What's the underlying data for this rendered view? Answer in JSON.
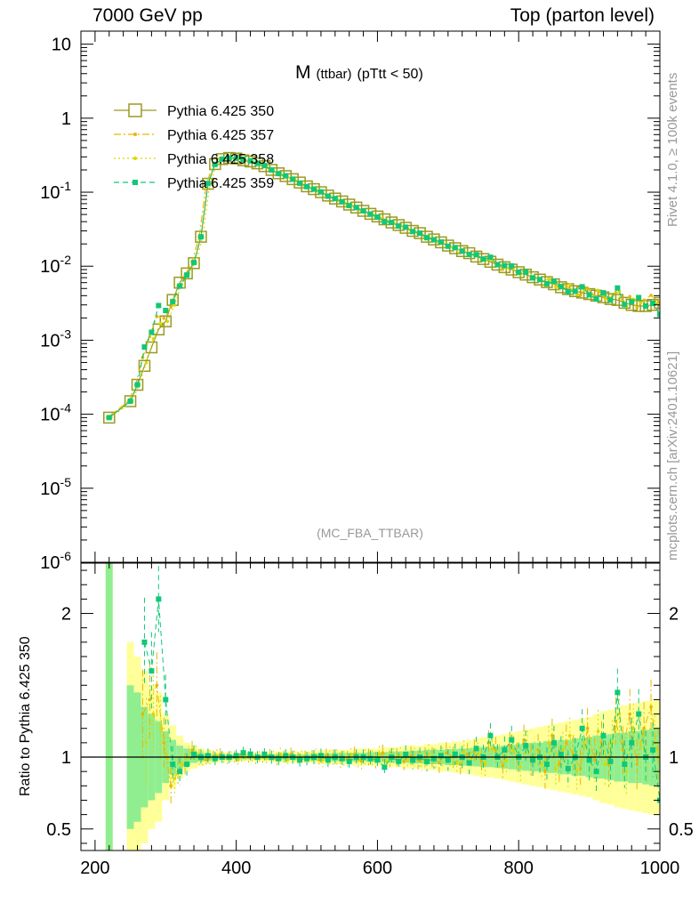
{
  "header": {
    "left": "7000 GeV pp",
    "right": "Top (parton level)"
  },
  "side_labels": {
    "rivet": "Rivet 4.1.0, ≥ 100k events",
    "mcplots": "mcplots.cern.ch [arXiv:2401.10621]"
  },
  "colors": {
    "p350": "#9a9a20",
    "p357": "#e6b800",
    "p358": "#d8d800",
    "p359": "#10c878",
    "band_yellow": "#ffff99",
    "band_green": "#90ee90"
  },
  "chart_data": {
    "type": "line",
    "title": "M (ttbar) (pTtt < 50)",
    "title_main": "M",
    "title_sub": "(ttbar)",
    "title_cut": "(pTtt < 50)",
    "watermark": "(MC_FBA_TTBAR)",
    "xlabel": "",
    "ylabel": "",
    "ratio_ylabel": "Ratio to Pythia 6.425 350",
    "xlim": [
      180,
      1000
    ],
    "ylim": [
      1e-06,
      15
    ],
    "yscale": "log",
    "ratio_ylim": [
      0.35,
      2.35
    ],
    "x_ticks": [
      "200",
      "400",
      "600",
      "800",
      "1000"
    ],
    "y_ticks": [
      "10^-6",
      "10^-5",
      "10^-4",
      "10^-3",
      "10^-2",
      "10^-1",
      "1",
      "10"
    ],
    "ratio_ticks": [
      "0.5",
      "1",
      "2"
    ],
    "legend_position": "top-left",
    "series": [
      {
        "name": "Pythia 6.425 350",
        "marker": "open-square",
        "line": "solid"
      },
      {
        "name": "Pythia 6.425 357",
        "marker": "dot",
        "line": "dash-dot"
      },
      {
        "name": "Pythia 6.425 358",
        "marker": "dot",
        "line": "dotted"
      },
      {
        "name": "Pythia 6.425 359",
        "marker": "filled-square",
        "line": "dashed"
      }
    ],
    "x": [
      200,
      210,
      220,
      230,
      240,
      250,
      260,
      270,
      280,
      290,
      300,
      310,
      320,
      330,
      340,
      350,
      360,
      370,
      380,
      390,
      400,
      410,
      420,
      430,
      440,
      450,
      460,
      470,
      480,
      490,
      500,
      510,
      520,
      530,
      540,
      550,
      560,
      570,
      580,
      590,
      600,
      610,
      620,
      630,
      640,
      650,
      660,
      670,
      680,
      690,
      700,
      710,
      720,
      730,
      740,
      750,
      760,
      770,
      780,
      790,
      800,
      810,
      820,
      830,
      840,
      850,
      860,
      870,
      880,
      890,
      900,
      910,
      920,
      930,
      940,
      950,
      960,
      970,
      980,
      990,
      1000
    ],
    "ref_values": [
      null,
      null,
      9e-05,
      null,
      null,
      0.00015,
      0.00025,
      0.00045,
      0.0008,
      0.0014,
      0.0018,
      0.0035,
      0.006,
      0.008,
      0.011,
      0.025,
      0.13,
      0.24,
      0.28,
      0.29,
      0.285,
      0.27,
      0.26,
      0.245,
      0.225,
      0.2,
      0.18,
      0.165,
      0.15,
      0.135,
      0.12,
      0.11,
      0.1,
      0.09,
      0.082,
      0.075,
      0.068,
      0.062,
      0.056,
      0.051,
      0.047,
      0.043,
      0.039,
      0.036,
      0.033,
      0.03,
      0.028,
      0.025,
      0.023,
      0.021,
      0.019,
      0.0175,
      0.016,
      0.015,
      0.0135,
      0.0125,
      0.0115,
      0.0105,
      0.0097,
      0.009,
      0.0083,
      0.0077,
      0.0071,
      0.0066,
      0.0061,
      0.0057,
      0.0052,
      0.0049,
      0.0046,
      0.0044,
      0.0042,
      0.004,
      0.0038,
      0.0036,
      0.0035,
      0.0032,
      0.003,
      0.0029,
      0.0029,
      0.003,
      0.0032
    ],
    "ratio_357": [
      null,
      null,
      null,
      null,
      null,
      null,
      null,
      1.3,
      1.4,
      1.5,
      1.1,
      0.8,
      0.9,
      0.95,
      1.05,
      1.0,
      0.98,
      1.0,
      1.02,
      0.99,
      1.0,
      1.01,
      1.0,
      0.99,
      1.0,
      1.01,
      0.98,
      1.0,
      1.02,
      0.99,
      1.0,
      1.0,
      0.98,
      1.01,
      1.0,
      0.98,
      0.99,
      1.02,
      0.97,
      1.0,
      0.98,
      1.03,
      0.99,
      1.0,
      0.97,
      1.01,
      0.98,
      1.0,
      1.0,
      0.96,
      1.03,
      1.0,
      0.95,
      1.02,
      1.04,
      0.97,
      1.1,
      1.05,
      0.94,
      1.08,
      1.0,
      1.12,
      0.98,
      1.05,
      0.9,
      1.15,
      0.95,
      1.1,
      1.02,
      0.92,
      1.2,
      0.98,
      1.1,
      0.95,
      1.25,
      1.05,
      1.3,
      0.95,
      1.2,
      1.35,
      1.0
    ],
    "ratio_358": [
      null,
      null,
      null,
      null,
      null,
      null,
      null,
      1.1,
      1.3,
      1.2,
      1.0,
      0.85,
      0.95,
      1.0,
      1.02,
      0.99,
      1.0,
      1.01,
      0.99,
      1.0,
      0.98,
      1.01,
      1.0,
      1.0,
      0.99,
      1.0,
      1.02,
      0.98,
      1.0,
      1.0,
      0.99,
      1.01,
      0.98,
      1.0,
      1.0,
      0.99,
      1.01,
      0.98,
      1.0,
      0.99,
      1.02,
      0.97,
      1.0,
      1.01,
      0.98,
      1.0,
      0.97,
      1.02,
      0.99,
      1.0,
      1.0,
      0.96,
      1.04,
      0.99,
      1.02,
      0.95,
      1.06,
      1.0,
      0.97,
      1.05,
      0.93,
      1.08,
      1.0,
      0.95,
      1.1,
      0.92,
      1.05,
      1.15,
      0.9,
      1.1,
      1.0,
      1.18,
      0.95,
      1.1,
      1.3,
      0.9,
      1.2,
      1.1,
      1.0,
      1.1,
      0.95
    ],
    "ratio_359": [
      null,
      null,
      null,
      null,
      null,
      null,
      null,
      1.8,
      1.6,
      2.1,
      1.4,
      0.95,
      0.9,
      0.95,
      1.02,
      1.0,
      1.01,
      0.99,
      1.0,
      1.0,
      1.01,
      1.03,
      1.02,
      1.0,
      1.02,
      1.0,
      0.99,
      1.01,
      1.0,
      0.98,
      0.99,
      1.0,
      1.01,
      0.98,
      1.0,
      0.99,
      0.97,
      1.0,
      1.0,
      0.99,
      0.98,
      0.93,
      1.0,
      0.97,
      1.02,
      0.98,
      1.0,
      0.97,
      0.99,
      1.01,
      0.98,
      1.02,
      1.0,
      0.96,
      1.06,
      1.0,
      1.15,
      1.0,
      1.05,
      1.12,
      1.0,
      1.08,
      0.98,
      1.0,
      0.95,
      1.1,
      1.02,
      0.92,
      1.0,
      1.2,
      0.98,
      0.9,
      1.15,
      0.97,
      1.45,
      0.95,
      1.1,
      1.3,
      1.0,
      1.05,
      0.7
    ],
    "band_yellow_halfwidth": [
      null,
      null,
      2.0,
      null,
      null,
      0.8,
      0.7,
      0.6,
      0.5,
      0.45,
      0.3,
      0.22,
      0.15,
      0.1,
      0.08,
      0.06,
      0.05,
      0.04,
      0.03,
      0.03,
      0.03,
      0.03,
      0.03,
      0.03,
      0.03,
      0.03,
      0.04,
      0.04,
      0.04,
      0.04,
      0.04,
      0.04,
      0.05,
      0.05,
      0.05,
      0.05,
      0.05,
      0.06,
      0.06,
      0.06,
      0.06,
      0.07,
      0.07,
      0.07,
      0.08,
      0.08,
      0.08,
      0.09,
      0.09,
      0.1,
      0.1,
      0.11,
      0.11,
      0.12,
      0.13,
      0.14,
      0.14,
      0.15,
      0.16,
      0.17,
      0.18,
      0.19,
      0.2,
      0.21,
      0.22,
      0.23,
      0.24,
      0.25,
      0.26,
      0.27,
      0.28,
      0.3,
      0.32,
      0.33,
      0.35,
      0.36,
      0.37,
      0.38,
      0.39,
      0.4,
      0.4
    ],
    "band_green_halfwidth": [
      null,
      null,
      1.5,
      null,
      null,
      0.5,
      0.45,
      0.35,
      0.3,
      0.25,
      0.18,
      0.12,
      0.08,
      0.06,
      0.04,
      0.03,
      0.025,
      0.02,
      0.015,
      0.015,
      0.015,
      0.015,
      0.015,
      0.015,
      0.015,
      0.02,
      0.02,
      0.02,
      0.02,
      0.02,
      0.02,
      0.025,
      0.025,
      0.025,
      0.03,
      0.03,
      0.03,
      0.03,
      0.03,
      0.035,
      0.035,
      0.035,
      0.04,
      0.04,
      0.04,
      0.045,
      0.045,
      0.05,
      0.05,
      0.05,
      0.055,
      0.055,
      0.06,
      0.06,
      0.065,
      0.07,
      0.07,
      0.075,
      0.08,
      0.085,
      0.09,
      0.095,
      0.1,
      0.1,
      0.11,
      0.11,
      0.12,
      0.12,
      0.13,
      0.13,
      0.14,
      0.15,
      0.15,
      0.16,
      0.17,
      0.17,
      0.18,
      0.18,
      0.19,
      0.2,
      0.2
    ]
  }
}
